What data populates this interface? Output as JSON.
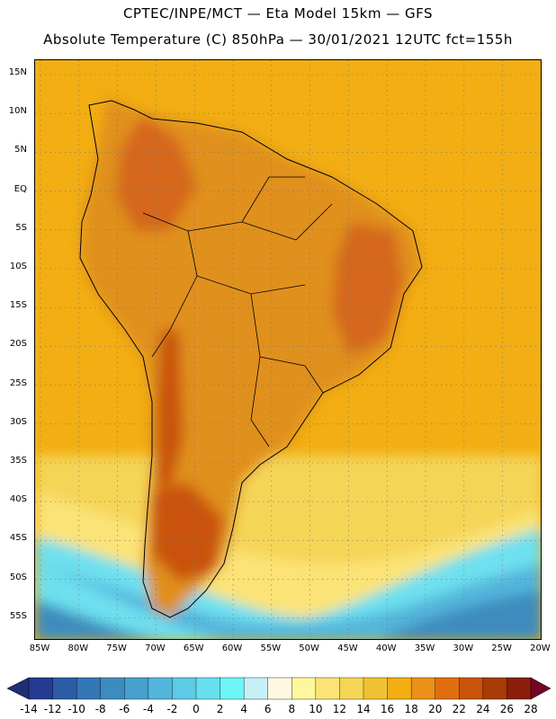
{
  "header": {
    "line1": "CPTEC/INPE/MCT —  Eta Model 15km — GFS",
    "line2": "Absolute Temperature (C) 850hPa — 30/01/2021 12UTC fct=155h"
  },
  "map": {
    "lat_labels": [
      "15N",
      "10N",
      "5N",
      "EQ",
      "5S",
      "10S",
      "15S",
      "20S",
      "25S",
      "30S",
      "35S",
      "40S",
      "45S",
      "50S",
      "55S"
    ],
    "lon_labels": [
      "85W",
      "80W",
      "75W",
      "70W",
      "65W",
      "60W",
      "55W",
      "50W",
      "45W",
      "40W",
      "35W",
      "30W",
      "25W",
      "20W"
    ],
    "ocean_color": "#f2ae12",
    "land_color": "#e0901e"
  },
  "colorbar": {
    "labels": [
      "-14",
      "-12",
      "-10",
      "-8",
      "-6",
      "-4",
      "-2",
      "0",
      "2",
      "4",
      "6",
      "8",
      "10",
      "12",
      "14",
      "16",
      "18",
      "20",
      "22",
      "24",
      "26",
      "28"
    ],
    "colors": [
      "#233a90",
      "#2c5ca6",
      "#3477b4",
      "#3d8cbf",
      "#47a0cc",
      "#53b5db",
      "#5dcae6",
      "#66e0ef",
      "#6ef5f8",
      "#c6f0f8",
      "#fff8e1",
      "#fff7a0",
      "#fbe377",
      "#f5d556",
      "#f1c134",
      "#f2ae12",
      "#eb9018",
      "#e06e0f",
      "#c9530a",
      "#a83b06",
      "#8a1e0a"
    ],
    "low_arrow_color": "#1f2e78",
    "high_arrow_color": "#720626"
  }
}
